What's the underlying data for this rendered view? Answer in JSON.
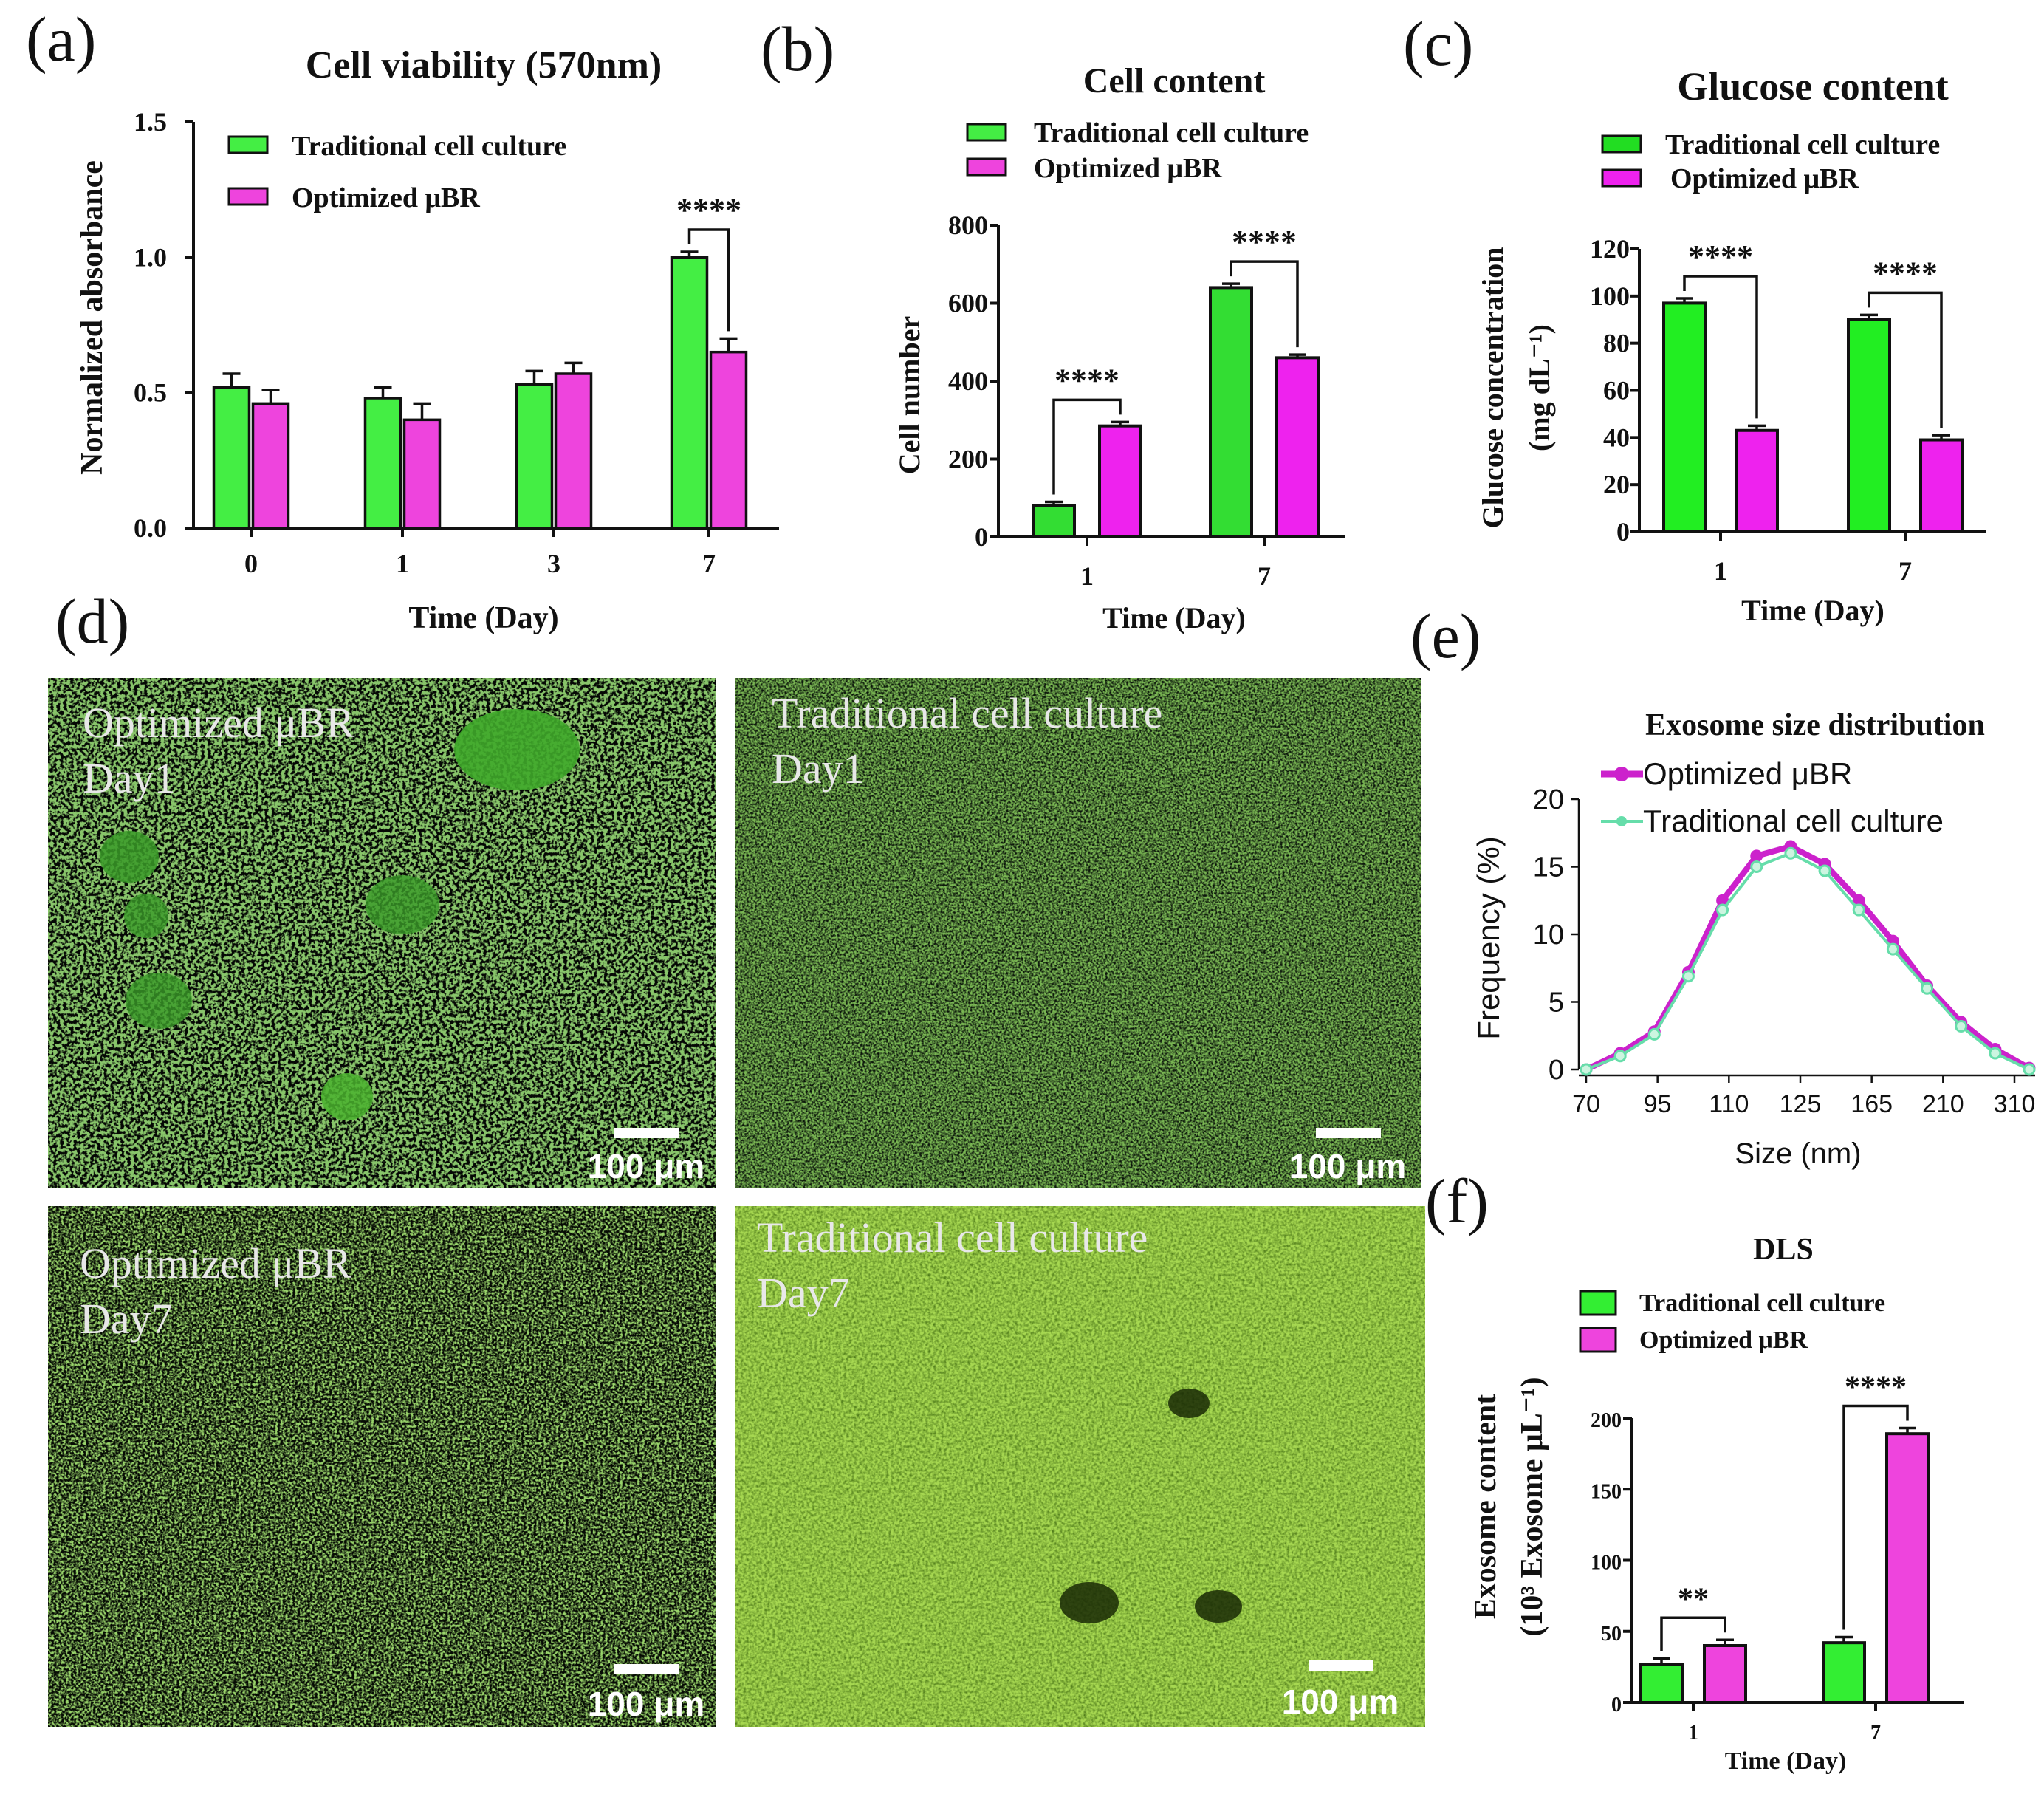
{
  "colors": {
    "traditional": "#44ee44",
    "optimized": "#ee44dd",
    "e_optimized": "#cc22cc",
    "e_traditional": "#66ddaa",
    "micro_green": "#5fd12a"
  },
  "panels": {
    "a": {
      "letter": "(a)"
    },
    "b": {
      "letter": "(b)"
    },
    "c": {
      "letter": "(c)"
    },
    "d": {
      "letter": "(d)"
    },
    "e": {
      "letter": "(e)"
    },
    "f": {
      "letter": "(f)"
    }
  },
  "micrographs": [
    {
      "line1": "Optimized μBR",
      "line2": "Day1",
      "scale": "100 μm"
    },
    {
      "line1": "Traditional cell culture",
      "line2": "Day1",
      "scale": "100 μm"
    },
    {
      "line1": "Optimized μBR",
      "line2": "Day7",
      "scale": "100 μm"
    },
    {
      "line1": "Traditional cell culture",
      "line2": "Day7",
      "scale": "100 μm"
    }
  ],
  "chart_data": [
    {
      "id": "a",
      "type": "bar",
      "title": "Cell viability (570nm)",
      "xlabel": "Time (Day)",
      "ylabel": "Normalized  absorbance",
      "categories": [
        "0",
        "1",
        "3",
        "7"
      ],
      "series": [
        {
          "name": "Traditional cell culture",
          "values": [
            0.52,
            0.48,
            0.53,
            1.0
          ],
          "errors": [
            0.05,
            0.04,
            0.05,
            0.02
          ]
        },
        {
          "name": "Optimized μBR",
          "values": [
            0.46,
            0.4,
            0.57,
            0.65
          ],
          "errors": [
            0.05,
            0.06,
            0.04,
            0.05
          ]
        }
      ],
      "ylim": [
        0,
        1.5
      ],
      "yticks": [
        "0.0",
        "0.5",
        "1.0",
        "1.5"
      ],
      "significance": [
        {
          "category": "7",
          "label": "****"
        }
      ]
    },
    {
      "id": "b",
      "type": "bar",
      "title": "Cell content",
      "xlabel": "Time (Day)",
      "ylabel": "Cell number",
      "categories": [
        "1",
        "7"
      ],
      "series": [
        {
          "name": "Traditional cell culture",
          "values": [
            80,
            640
          ],
          "errors": [
            10,
            10
          ]
        },
        {
          "name": "Optimized μBR",
          "values": [
            285,
            460
          ],
          "errors": [
            10,
            8
          ]
        }
      ],
      "ylim": [
        0,
        800
      ],
      "yticks": [
        "0",
        "200",
        "400",
        "600",
        "800"
      ],
      "significance": [
        {
          "category": "1",
          "label": "****"
        },
        {
          "category": "7",
          "label": "****"
        }
      ]
    },
    {
      "id": "c",
      "type": "bar",
      "title": "Glucose content",
      "xlabel": "Time (Day)",
      "ylabel": "Glucose concentration",
      "ylabel2": "(mg dL⁻¹)",
      "categories": [
        "1",
        "7"
      ],
      "series": [
        {
          "name": "Traditional cell culture",
          "values": [
            97,
            90
          ],
          "errors": [
            2,
            2
          ]
        },
        {
          "name": "Optimized μBR",
          "values": [
            43,
            39
          ],
          "errors": [
            2,
            2
          ]
        }
      ],
      "ylim": [
        0,
        120
      ],
      "yticks": [
        "0",
        "20",
        "40",
        "60",
        "80",
        "100",
        "120"
      ],
      "significance": [
        {
          "category": "1",
          "label": "****"
        },
        {
          "category": "7",
          "label": "****"
        }
      ]
    },
    {
      "id": "e",
      "type": "line",
      "title": "Exosome size distribution",
      "xlabel": "Size (nm)",
      "ylabel": "Frequency (%)",
      "xticks": [
        "70",
        "95",
        "110",
        "125",
        "165",
        "210",
        "310"
      ],
      "ylim": [
        0,
        20
      ],
      "yticks": [
        "0",
        "5",
        "10",
        "15",
        "20"
      ],
      "series": [
        {
          "name": "Optimized μBR",
          "values": [
            0,
            1.2,
            2.8,
            7.2,
            12.5,
            15.8,
            16.5,
            15.2,
            12.5,
            9.5,
            6.2,
            3.5,
            1.5,
            0.1
          ]
        },
        {
          "name": "Traditional cell culture",
          "values": [
            0,
            1.0,
            2.6,
            6.9,
            11.8,
            15.0,
            16.0,
            14.7,
            11.8,
            8.9,
            6.0,
            3.2,
            1.2,
            0.0
          ]
        }
      ]
    },
    {
      "id": "f",
      "type": "bar",
      "title": "DLS",
      "xlabel": "Time (Day)",
      "ylabel": "Exosome content",
      "ylabel2": "(10³ Exosome μL⁻¹)",
      "categories": [
        "1",
        "7"
      ],
      "series": [
        {
          "name": "Traditional cell culture",
          "values": [
            27,
            42
          ],
          "errors": [
            4,
            4
          ]
        },
        {
          "name": "Optimized μBR",
          "values": [
            40,
            189
          ],
          "errors": [
            4,
            4
          ]
        }
      ],
      "ylim": [
        0,
        200
      ],
      "yticks": [
        "0",
        "50",
        "100",
        "150",
        "200"
      ],
      "significance": [
        {
          "category": "1",
          "label": "**"
        },
        {
          "category": "7",
          "label": "****"
        }
      ]
    }
  ]
}
